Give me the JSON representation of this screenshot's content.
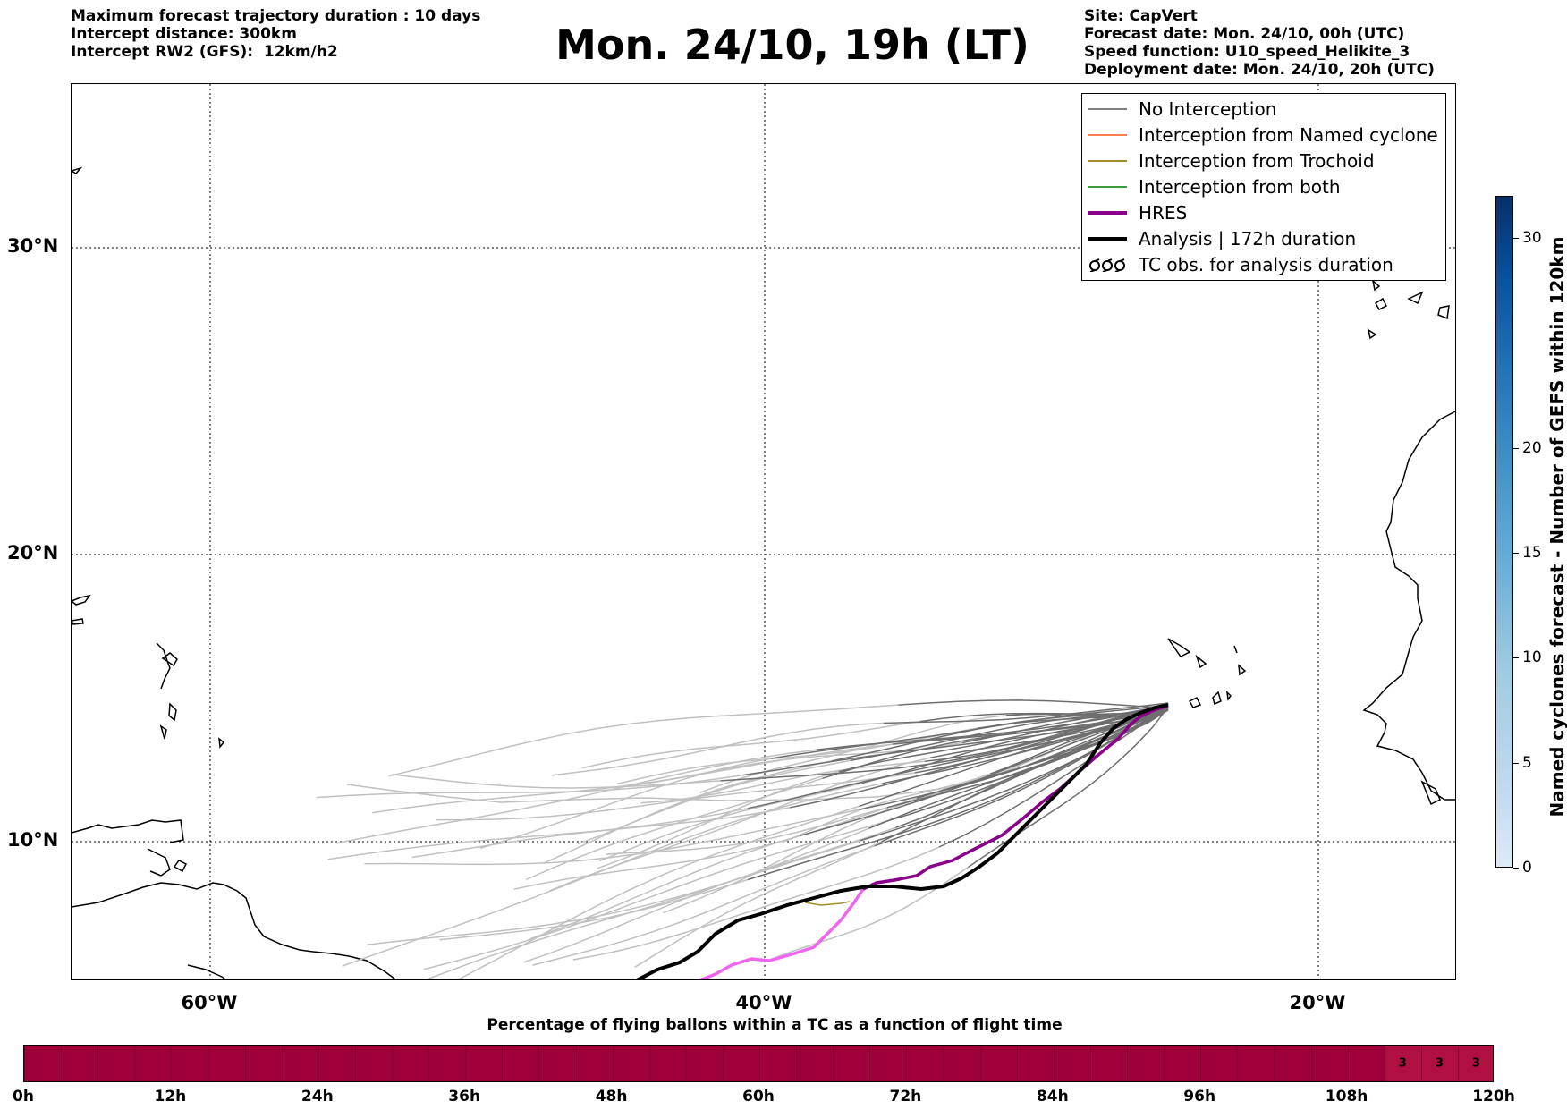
{
  "header_left": [
    "Maximum forecast trajectory duration : 10 days",
    "Intercept distance: 300km",
    "Intercept RW2 (GFS):  12km/h2"
  ],
  "title": "Mon. 24/10, 19h (LT)",
  "header_right": [
    "Site: CapVert",
    "Forecast date: Mon. 24/10, 00h (UTC)",
    "Speed function: U10_speed_Helikite_3",
    "Deployment date: Mon. 24/10, 20h (UTC)"
  ],
  "map": {
    "lat_labels": [
      "30°N",
      "20°N",
      "10°N"
    ],
    "lon_labels": [
      "60°W",
      "40°W",
      "20°W"
    ],
    "gridlines": true
  },
  "legend": [
    {
      "label": "No Interception",
      "color": "#808080",
      "style": "thin"
    },
    {
      "label": "Interception from Named cyclone",
      "color": "#ff7f50",
      "style": "thin"
    },
    {
      "label": "Interception from Trochoid",
      "color": "#a08c2c",
      "style": "thin"
    },
    {
      "label": "Interception from both",
      "color": "#3a9e3a",
      "style": "thin"
    },
    {
      "label": "HRES",
      "color": "#8b008b",
      "style": "thick"
    },
    {
      "label": "Analysis | 172h duration",
      "color": "#000000",
      "style": "thick"
    },
    {
      "label": "TC obs. for analysis duration",
      "color": "#000000",
      "style": "symbol"
    }
  ],
  "colorbar": {
    "label": "Named cyclones forecast - Number of GEFS within 120km",
    "ticks": [
      "0",
      "5",
      "10",
      "15",
      "20",
      "30"
    ],
    "tick_values": [
      0,
      5,
      10,
      15,
      20,
      30
    ],
    "max": 32
  },
  "percentage_bar": {
    "title": "Percentage of flying ballons within a TC as a function of flight time",
    "time_labels": [
      "0h",
      "12h",
      "24h",
      "36h",
      "48h",
      "60h",
      "72h",
      "84h",
      "96h",
      "108h",
      "120h"
    ],
    "segment_values": [
      "3",
      "3",
      "3"
    ],
    "base_color": "#a0003a",
    "highlight_color": "#b01040"
  }
}
